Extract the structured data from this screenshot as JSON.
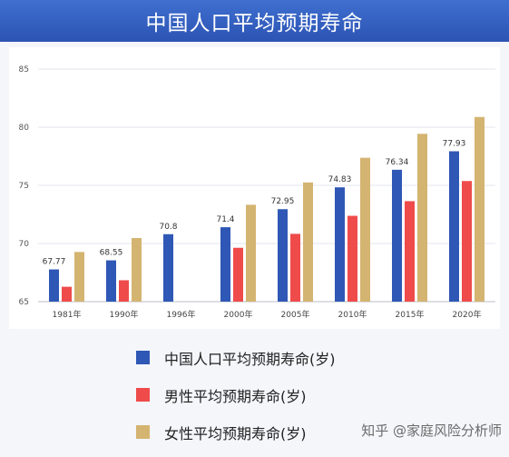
{
  "header": {
    "title": "中国人口平均预期寿命"
  },
  "chart_data": {
    "type": "bar",
    "title": "中国人口平均预期寿命",
    "categories": [
      "1981年",
      "1990年",
      "1996年",
      "2000年",
      "2005年",
      "2010年",
      "2015年",
      "2020年"
    ],
    "series": [
      {
        "name": "中国人口平均预期寿命(岁)",
        "color": "#2f57b5",
        "values": [
          67.77,
          68.55,
          70.8,
          71.4,
          72.95,
          74.83,
          76.34,
          77.93
        ],
        "labels": [
          "67.77",
          "68.55",
          "70.8",
          "71.4",
          "72.95",
          "74.83",
          "76.34",
          "77.93"
        ]
      },
      {
        "name": "男性平均预期寿命(岁)",
        "color": "#ef4b4b",
        "values": [
          66.28,
          66.84,
          null,
          69.63,
          70.83,
          72.38,
          73.64,
          75.37
        ],
        "labels": []
      },
      {
        "name": "女性平均预期寿命(岁)",
        "color": "#d4b471",
        "values": [
          69.27,
          70.47,
          null,
          73.33,
          75.25,
          77.37,
          79.43,
          80.88
        ],
        "labels": []
      }
    ],
    "ylim": [
      65,
      85
    ],
    "yticks": [
      65,
      70,
      75,
      80,
      85
    ],
    "grid": true,
    "legend_position": "bottom"
  },
  "watermark": "知乎 @家庭风险分析师"
}
